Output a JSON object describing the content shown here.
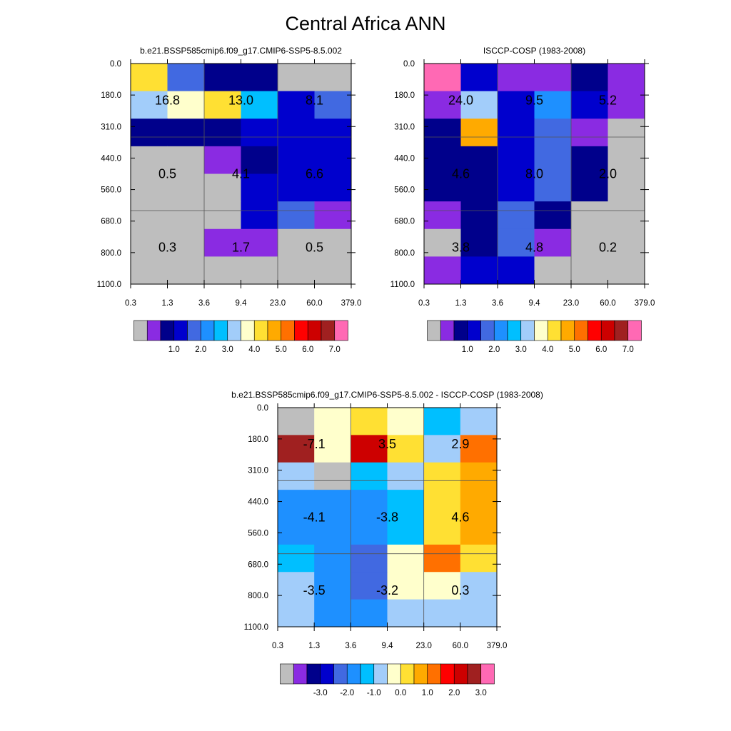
{
  "page": {
    "title": "Central Africa ANN"
  },
  "colors": {
    "abs": [
      "#bebebe",
      "#8a2be2",
      "#00008b",
      "#0000cd",
      "#4169e1",
      "#1e90ff",
      "#00bfff",
      "#a2cdfa",
      "#ffffcc",
      "#ffe033",
      "#ffaa00",
      "#ff7000",
      "#ff0000",
      "#cd0000",
      "#a02020",
      "#ff69b4"
    ],
    "diff": [
      "#bebebe",
      "#8a2be2",
      "#00008b",
      "#0000cd",
      "#4169e1",
      "#1e90ff",
      "#00bfff",
      "#a2cdfa",
      "#ffffcc",
      "#ffe033",
      "#ffaa00",
      "#ff7000",
      "#ff0000",
      "#cd0000",
      "#a02020",
      "#ff69b4"
    ]
  },
  "chart_data": [
    {
      "type": "heatmap",
      "title": "b.e21.BSSP585cmip6.f09_g17.CMIP6-SSP5-8.5.002",
      "x_ticks": [
        "0.3",
        "1.3",
        "3.6",
        "9.4",
        "23.0",
        "60.0",
        "379.0"
      ],
      "y_ticks": [
        "0.0",
        "180.0",
        "310.0",
        "440.0",
        "560.0",
        "680.0",
        "800.0",
        "1100.0"
      ],
      "cells": [
        [
          9,
          4,
          2,
          2,
          0,
          0
        ],
        [
          7,
          8,
          9,
          6,
          3,
          4
        ],
        [
          2,
          2,
          2,
          3,
          3,
          3
        ],
        [
          0,
          0,
          1,
          2,
          3,
          3
        ],
        [
          0,
          0,
          0,
          3,
          3,
          3
        ],
        [
          0,
          0,
          0,
          3,
          4,
          1
        ],
        [
          0,
          0,
          1,
          1,
          0,
          0
        ],
        [
          0,
          0,
          0,
          0,
          0,
          0
        ]
      ],
      "labels": [
        [
          "16.8",
          "13.0",
          "8.1"
        ],
        [
          "0.5",
          "4.1",
          "6.6"
        ],
        [
          "0.3",
          "1.7",
          "0.5"
        ]
      ],
      "colorbar": {
        "palette": "abs",
        "ticks": [
          "1.0",
          "2.0",
          "3.0",
          "4.0",
          "5.0",
          "6.0",
          "7.0"
        ]
      }
    },
    {
      "type": "heatmap",
      "title": "ISCCP-COSP (1983-2008)",
      "x_ticks": [
        "0.3",
        "1.3",
        "3.6",
        "9.4",
        "23.0",
        "60.0",
        "379.0"
      ],
      "y_ticks": [
        "0.0",
        "180.0",
        "310.0",
        "440.0",
        "560.0",
        "680.0",
        "800.0",
        "1100.0"
      ],
      "cells": [
        [
          15,
          3,
          1,
          1,
          2,
          1
        ],
        [
          1,
          7,
          3,
          5,
          3,
          1
        ],
        [
          2,
          10,
          3,
          4,
          1,
          0
        ],
        [
          2,
          2,
          3,
          4,
          2,
          0
        ],
        [
          2,
          2,
          3,
          4,
          2,
          0
        ],
        [
          1,
          2,
          4,
          2,
          0,
          0
        ],
        [
          0,
          2,
          4,
          1,
          0,
          0
        ],
        [
          1,
          3,
          3,
          0,
          0,
          0
        ]
      ],
      "labels": [
        [
          "24.0",
          "9.5",
          "5.2"
        ],
        [
          "4.6",
          "8.0",
          "2.0"
        ],
        [
          "3.8",
          "4.8",
          "0.2"
        ]
      ],
      "colorbar": {
        "palette": "abs",
        "ticks": [
          "1.0",
          "2.0",
          "3.0",
          "4.0",
          "5.0",
          "6.0",
          "7.0"
        ]
      }
    },
    {
      "type": "heatmap",
      "title": "b.e21.BSSP585cmip6.f09_g17.CMIP6-SSP5-8.5.002 - ISCCP-COSP (1983-2008)",
      "x_ticks": [
        "0.3",
        "1.3",
        "3.6",
        "9.4",
        "23.0",
        "60.0",
        "379.0"
      ],
      "y_ticks": [
        "0.0",
        "180.0",
        "310.0",
        "440.0",
        "560.0",
        "680.0",
        "800.0",
        "1100.0"
      ],
      "cells": [
        [
          0,
          8,
          9,
          8,
          6,
          7
        ],
        [
          14,
          8,
          13,
          9,
          7,
          11
        ],
        [
          7,
          0,
          6,
          7,
          9,
          10
        ],
        [
          5,
          5,
          5,
          6,
          9,
          10
        ],
        [
          5,
          5,
          5,
          6,
          9,
          10
        ],
        [
          6,
          5,
          4,
          8,
          11,
          9
        ],
        [
          7,
          5,
          4,
          8,
          8,
          7
        ],
        [
          7,
          5,
          5,
          7,
          7,
          7
        ]
      ],
      "labels": [
        [
          "-7.1",
          "3.5",
          "2.9"
        ],
        [
          "-4.1",
          "-3.8",
          "4.6"
        ],
        [
          "-3.5",
          "-3.2",
          "0.3"
        ]
      ],
      "colorbar": {
        "palette": "diff",
        "ticks": [
          "-3.0",
          "-2.0",
          "-1.0",
          "0.0",
          "1.0",
          "2.0",
          "3.0"
        ]
      }
    }
  ]
}
